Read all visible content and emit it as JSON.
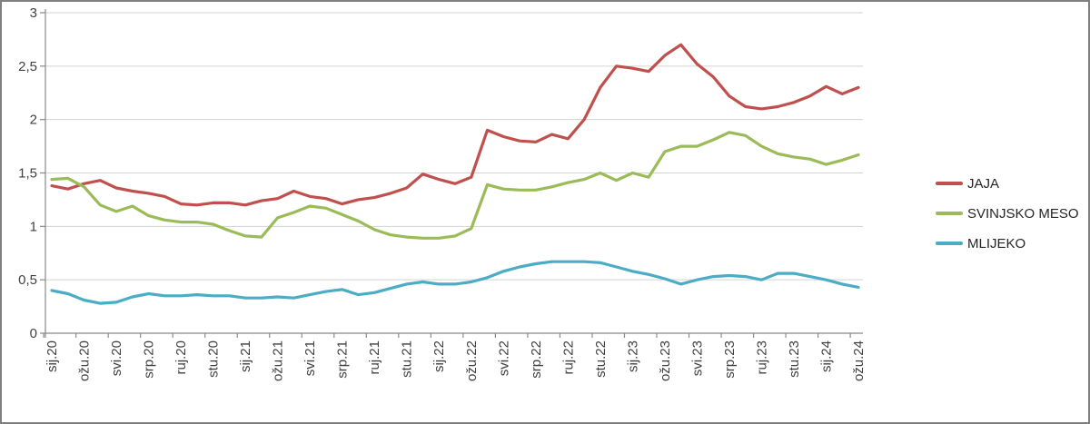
{
  "chart_data": {
    "type": "line",
    "title": "",
    "grid": true,
    "legend_position": "right",
    "y_axis": {
      "min": 0,
      "max": 3,
      "step": 0.5,
      "tick_labels": [
        "0",
        "0,5",
        "1",
        "1,5",
        "2",
        "2,5",
        "3"
      ]
    },
    "x_axis": {
      "points_per_tick": 2,
      "tick_labels": [
        "sij.20",
        "ožu.20",
        "svi.20",
        "srp.20",
        "ruj.20",
        "stu.20",
        "sij.21",
        "ožu.21",
        "svi.21",
        "srp.21",
        "ruj.21",
        "stu.21",
        "sij.22",
        "ožu.22",
        "svi.22",
        "srp.22",
        "ruj.22",
        "stu.22",
        "sij.23",
        "ožu.23",
        "svi.23",
        "srp.23",
        "ruj.23",
        "stu.23",
        "sij.24",
        "ožu.24"
      ]
    },
    "series": [
      {
        "name": "JAJA",
        "color": "#C0504D",
        "values": [
          1.38,
          1.35,
          1.4,
          1.43,
          1.36,
          1.33,
          1.31,
          1.28,
          1.21,
          1.2,
          1.22,
          1.22,
          1.2,
          1.24,
          1.26,
          1.33,
          1.28,
          1.26,
          1.21,
          1.25,
          1.27,
          1.31,
          1.36,
          1.49,
          1.44,
          1.4,
          1.46,
          1.9,
          1.84,
          1.8,
          1.79,
          1.86,
          1.82,
          2.0,
          2.3,
          2.5,
          2.48,
          2.45,
          2.6,
          2.7,
          2.52,
          2.4,
          2.22,
          2.12,
          2.1,
          2.12,
          2.16,
          2.22,
          2.31,
          2.24,
          2.3
        ]
      },
      {
        "name": "SVINJSKO MESO",
        "color": "#9BBB59",
        "values": [
          1.44,
          1.45,
          1.37,
          1.2,
          1.14,
          1.19,
          1.1,
          1.06,
          1.04,
          1.04,
          1.02,
          0.96,
          0.91,
          0.9,
          1.08,
          1.13,
          1.19,
          1.17,
          1.11,
          1.05,
          0.97,
          0.92,
          0.9,
          0.89,
          0.89,
          0.91,
          0.98,
          1.39,
          1.35,
          1.34,
          1.34,
          1.37,
          1.41,
          1.44,
          1.5,
          1.43,
          1.5,
          1.46,
          1.7,
          1.75,
          1.75,
          1.81,
          1.88,
          1.85,
          1.75,
          1.68,
          1.65,
          1.63,
          1.58,
          1.62,
          1.67
        ]
      },
      {
        "name": "MLIJEKO",
        "color": "#4BACC6",
        "values": [
          0.4,
          0.37,
          0.31,
          0.28,
          0.29,
          0.34,
          0.37,
          0.35,
          0.35,
          0.36,
          0.35,
          0.35,
          0.33,
          0.33,
          0.34,
          0.33,
          0.36,
          0.39,
          0.41,
          0.36,
          0.38,
          0.42,
          0.46,
          0.48,
          0.46,
          0.46,
          0.48,
          0.52,
          0.58,
          0.62,
          0.65,
          0.67,
          0.67,
          0.67,
          0.66,
          0.62,
          0.58,
          0.55,
          0.51,
          0.46,
          0.5,
          0.53,
          0.54,
          0.53,
          0.5,
          0.56,
          0.56,
          0.53,
          0.5,
          0.46,
          0.43
        ]
      }
    ],
    "style": {
      "gridline_color": "#D3D3D3",
      "axis_color": "#898989",
      "tick_color": "#898989",
      "label_color": "#404040",
      "background": "#FFFFFF",
      "border_color": "#7F7F7F",
      "line_width": 3.2
    }
  }
}
